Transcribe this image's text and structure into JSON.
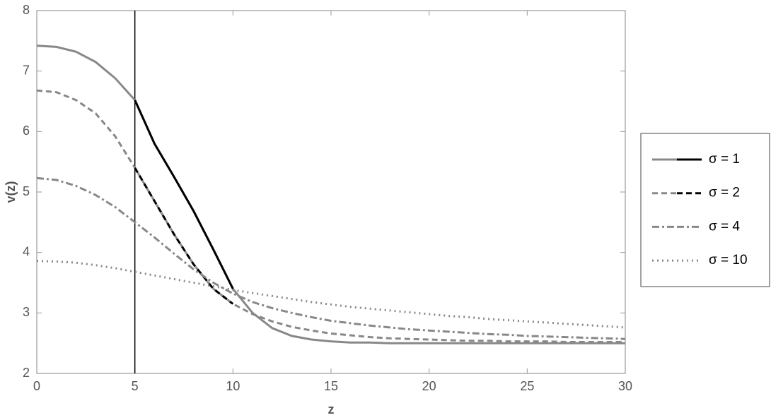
{
  "chart_data": {
    "type": "line",
    "x_label": "z",
    "y_label": "v(z)",
    "x": [
      0,
      1,
      2,
      3,
      4,
      5,
      6,
      7,
      8,
      9,
      10,
      11,
      12,
      13,
      14,
      15,
      16,
      17,
      18,
      19,
      20,
      21,
      22,
      23,
      24,
      25,
      26,
      27,
      28,
      29,
      30
    ],
    "series": [
      {
        "name": "σ = 1",
        "color": "#888888",
        "highlight_color": "#000000",
        "highlight_xlim": [
          5,
          10
        ],
        "dash": "none",
        "values": [
          7.42,
          7.4,
          7.32,
          7.15,
          6.88,
          6.52,
          5.8,
          5.25,
          4.68,
          4.05,
          3.4,
          3.0,
          2.75,
          2.62,
          2.56,
          2.53,
          2.51,
          2.51,
          2.5,
          2.5,
          2.5,
          2.5,
          2.5,
          2.5,
          2.5,
          2.5,
          2.5,
          2.5,
          2.5,
          2.5,
          2.5
        ]
      },
      {
        "name": "σ = 2",
        "color": "#888888",
        "highlight_color": "#000000",
        "highlight_xlim": [
          5,
          10
        ],
        "dash": "8,5",
        "values": [
          6.68,
          6.65,
          6.52,
          6.3,
          5.92,
          5.4,
          4.85,
          4.3,
          3.8,
          3.4,
          3.15,
          2.98,
          2.86,
          2.77,
          2.71,
          2.66,
          2.63,
          2.6,
          2.58,
          2.57,
          2.56,
          2.55,
          2.54,
          2.54,
          2.53,
          2.53,
          2.53,
          2.52,
          2.52,
          2.52,
          2.52
        ]
      },
      {
        "name": "σ = 4",
        "color": "#888888",
        "dash": "10,4,3,4",
        "values": [
          5.23,
          5.2,
          5.1,
          4.95,
          4.75,
          4.5,
          4.25,
          3.98,
          3.72,
          3.5,
          3.32,
          3.18,
          3.08,
          3.0,
          2.93,
          2.87,
          2.83,
          2.79,
          2.76,
          2.73,
          2.71,
          2.69,
          2.67,
          2.65,
          2.64,
          2.62,
          2.61,
          2.6,
          2.59,
          2.58,
          2.57
        ]
      },
      {
        "name": "σ = 10",
        "color": "#888888",
        "dash": "2,5",
        "values": [
          3.86,
          3.85,
          3.83,
          3.79,
          3.74,
          3.68,
          3.62,
          3.56,
          3.5,
          3.44,
          3.38,
          3.33,
          3.28,
          3.23,
          3.18,
          3.14,
          3.1,
          3.07,
          3.04,
          3.01,
          2.98,
          2.95,
          2.93,
          2.9,
          2.88,
          2.86,
          2.84,
          2.82,
          2.8,
          2.78,
          2.76
        ]
      }
    ],
    "vline": 5,
    "xlim": [
      0,
      30
    ],
    "xticks": [
      0,
      5,
      10,
      15,
      20,
      25,
      30
    ],
    "ylim": [
      2,
      8
    ],
    "yticks": [
      2,
      3,
      4,
      5,
      6,
      7,
      8
    ],
    "legend": "right"
  }
}
